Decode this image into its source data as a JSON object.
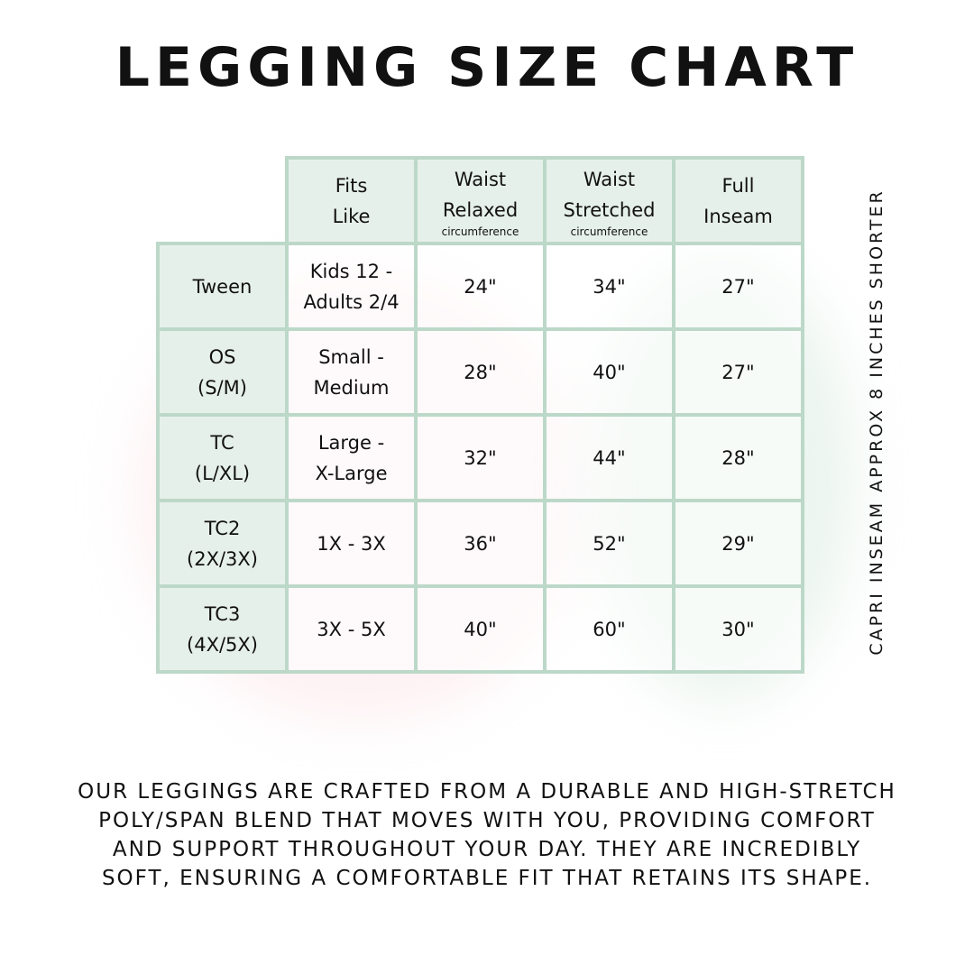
{
  "title": "LEGGING SIZE CHART",
  "table": {
    "headers": [
      {
        "line1": "Fits",
        "line2": "Like",
        "sub": ""
      },
      {
        "line1": "Waist",
        "line2": "Relaxed",
        "sub": "circumference"
      },
      {
        "line1": "Waist",
        "line2": "Stretched",
        "sub": "circumference"
      },
      {
        "line1": "Full",
        "line2": "Inseam",
        "sub": ""
      }
    ],
    "rows": [
      {
        "size": "Tween",
        "size2": "",
        "fits1": "Kids 12 -",
        "fits2": "Adults 2/4",
        "relaxed": "24\"",
        "stretched": "34\"",
        "inseam": "27\""
      },
      {
        "size": "OS",
        "size2": "(S/M)",
        "fits1": "Small -",
        "fits2": "Medium",
        "relaxed": "28\"",
        "stretched": "40\"",
        "inseam": "27\""
      },
      {
        "size": "TC",
        "size2": "(L/XL)",
        "fits1": "Large -",
        "fits2": "X-Large",
        "relaxed": "32\"",
        "stretched": "44\"",
        "inseam": "28\""
      },
      {
        "size": "TC2",
        "size2": "(2X/3X)",
        "fits1": "1X - 3X",
        "fits2": "",
        "relaxed": "36\"",
        "stretched": "52\"",
        "inseam": "29\""
      },
      {
        "size": "TC3",
        "size2": "(4X/5X)",
        "fits1": "3X - 5X",
        "fits2": "",
        "relaxed": "40\"",
        "stretched": "60\"",
        "inseam": "30\""
      }
    ]
  },
  "side_note": "CAPRI INSEAM APPROX 8 INCHES SHORTER",
  "description": [
    "Our leggings are crafted from a durable and high-stretch",
    "poly/span blend that moves with you, providing comfort",
    "and support throughout your day. They are incredibly",
    "soft, ensuring a comfortable fit that retains its shape."
  ],
  "colors": {
    "border": "#bcd8c8",
    "header_bg": "#e6f0ea"
  }
}
